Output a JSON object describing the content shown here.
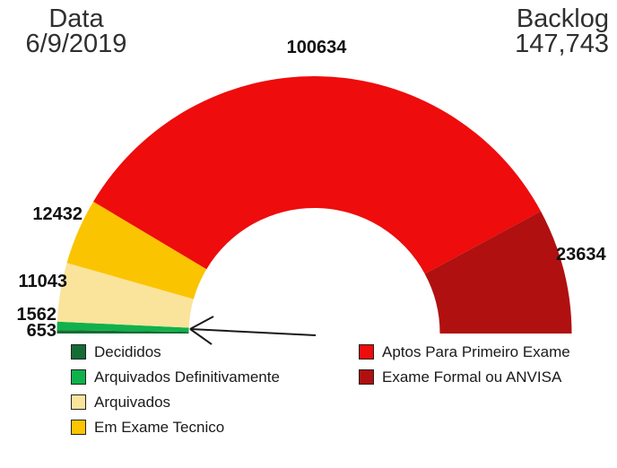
{
  "header": {
    "date_label": "Data",
    "date_value": "6/9/2019",
    "backlog_label": "Backlog",
    "backlog_value": "147,743"
  },
  "chart_data": {
    "type": "pie",
    "subtype": "half-donut-gauge",
    "orientation": "semicircle-top, segments drawn clockwise from left",
    "title": "",
    "legend_position": "bottom-two-columns",
    "segments": [
      {
        "label": "Decididos",
        "value": 653,
        "color": "#156C34"
      },
      {
        "label": "Arquivados Definitivamente",
        "value": 1562,
        "color": "#10B14B"
      },
      {
        "label": "Arquivados",
        "value": 11043,
        "color": "#FAE49C"
      },
      {
        "label": "Em Exame Tecnico",
        "value": 12432,
        "color": "#FBC400"
      },
      {
        "label": "Aptos Para Primeiro Exame",
        "value": 100634,
        "color": "#EE0C0C"
      },
      {
        "label": "Exame Formal ou ANVISA",
        "value": 23634,
        "color": "#B01010"
      }
    ],
    "annotation": {
      "type": "arrow",
      "points_to": "thin green segments (Decididos / Arquivados Definitivamente)"
    }
  }
}
